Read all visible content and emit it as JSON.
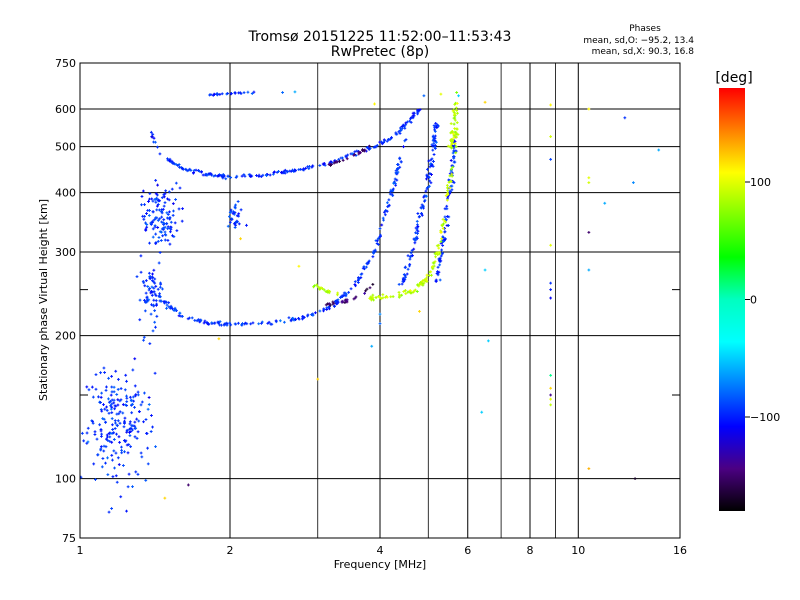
{
  "chart_data": {
    "type": "scatter",
    "title": "Tromsø 20151225 11:52:00–11:53:43",
    "subtitle": "RwPretec (8p)",
    "xlabel": "Frequency [MHz]",
    "ylabel": "Stationary phase Virtual Height [km]",
    "x_scale": "log2",
    "y_scale": "log",
    "xlim": [
      1,
      16
    ],
    "ylim": [
      75,
      750
    ],
    "x_ticks": [
      1,
      2,
      4,
      6,
      8,
      10,
      16
    ],
    "x_tick_labels": [
      "1",
      "2",
      "4",
      "6",
      "8",
      "10",
      "16"
    ],
    "x_minor_lines": [
      3,
      5,
      7,
      9
    ],
    "y_ticks": [
      75,
      100,
      200,
      300,
      400,
      500,
      600,
      750
    ],
    "y_tick_labels": [
      "75",
      "100",
      "200",
      "300",
      "400",
      "500",
      "600",
      "750"
    ],
    "y_minor_lines": [
      150,
      250
    ],
    "grid": true,
    "legend": {
      "title": "Phases",
      "lines": [
        "mean, sd,O: −95.2, 13.4",
        "mean, sd,X:  90.3, 16.8"
      ]
    },
    "colorbar": {
      "label": "[deg]",
      "range": [
        -180,
        180
      ],
      "ticks": [
        100,
        0,
        -100
      ],
      "tick_labels": [
        "100",
        "0",
        "−100"
      ],
      "colors": [
        "#ff0000",
        "#ff8000",
        "#ffff00",
        "#80ff00",
        "#00ff00",
        "#00ffc0",
        "#00ffff",
        "#0080ff",
        "#0000ff",
        "#4b0082",
        "#000000"
      ]
    },
    "series": [
      {
        "phase_deg": -95,
        "segments": [
          {
            "kind": "curve",
            "x": [
              1.38,
              1.45,
              1.6,
              1.8,
              2.0,
              2.3,
              2.7,
              3.1,
              3.5,
              3.9,
              4.2,
              4.5,
              4.8
            ],
            "y": [
              540,
              480,
              450,
              436,
              432,
              435,
              445,
              460,
              480,
              500,
              520,
              555,
              600
            ],
            "n": 220,
            "jitter": 0.008
          },
          {
            "kind": "curve",
            "x": [
              1.38,
              1.45,
              1.6,
              1.8,
              2.0,
              2.4,
              2.8,
              3.2,
              3.6,
              3.9,
              4.1,
              4.3,
              4.5
            ],
            "y": [
              270,
              240,
              220,
              213,
              212,
              213,
              218,
              230,
              260,
              300,
              360,
              430,
              520
            ],
            "n": 240,
            "jitter": 0.008
          },
          {
            "kind": "curve",
            "x": [
              4.4,
              4.6,
              4.8,
              5.0,
              5.1,
              5.2
            ],
            "y": [
              250,
              290,
              350,
              420,
              480,
              560
            ],
            "n": 120,
            "jitter": 0.01
          },
          {
            "kind": "curve",
            "x": [
              5.2,
              5.4,
              5.55,
              5.65
            ],
            "y": [
              260,
              330,
              420,
              520
            ],
            "n": 90,
            "jitter": 0.01
          },
          {
            "kind": "blob",
            "cx": 1.45,
            "cy": 360,
            "rx": 0.1,
            "ry": 45,
            "n": 130
          },
          {
            "kind": "blob",
            "cx": 2.05,
            "cy": 355,
            "rx": 0.07,
            "ry": 20,
            "n": 30
          },
          {
            "kind": "blob",
            "cx": 1.2,
            "cy": 130,
            "rx": 0.15,
            "ry": 30,
            "n": 230
          },
          {
            "kind": "blob",
            "cx": 1.4,
            "cy": 240,
            "rx": 0.07,
            "ry": 35,
            "n": 60
          },
          {
            "kind": "curve",
            "x": [
              1.82,
              1.95,
              2.1,
              2.25
            ],
            "y": [
              642,
              645,
              648,
              650
            ],
            "n": 25,
            "jitter": 0.004
          }
        ]
      },
      {
        "phase_deg": 90,
        "segments": [
          {
            "kind": "curve",
            "x": [
              3.8,
              4.3,
              4.7,
              5.0,
              5.25,
              5.45,
              5.6,
              5.7
            ],
            "y": [
              240,
              242,
              250,
              265,
              300,
              380,
              470,
              560
            ],
            "n": 130,
            "jitter": 0.01
          },
          {
            "kind": "curve",
            "x": [
              5.55,
              5.62,
              5.7
            ],
            "y": [
              500,
              560,
              620
            ],
            "n": 40,
            "jitter": 0.01
          },
          {
            "kind": "curve",
            "x": [
              2.95,
              3.1,
              3.3
            ],
            "y": [
              255,
              250,
              243
            ],
            "n": 20,
            "jitter": 0.01
          }
        ]
      },
      {
        "phase_deg": -150,
        "segments": [
          {
            "kind": "curve",
            "x": [
              3.1,
              3.4,
              3.7,
              3.9
            ],
            "y": [
              455,
              470,
              490,
              505
            ],
            "n": 25,
            "jitter": 0.006
          },
          {
            "kind": "curve",
            "x": [
              3.1,
              3.4,
              3.7,
              3.9
            ],
            "y": [
              232,
              236,
              245,
              260
            ],
            "n": 25,
            "jitter": 0.006
          }
        ]
      }
    ],
    "scattered_points": [
      {
        "x": 6.5,
        "y": 620,
        "phase": 120
      },
      {
        "x": 8.8,
        "y": 612,
        "phase": 110
      },
      {
        "x": 8.8,
        "y": 525,
        "phase": 95
      },
      {
        "x": 8.8,
        "y": 470,
        "phase": -90
      },
      {
        "x": 8.8,
        "y": 310,
        "phase": 100
      },
      {
        "x": 8.8,
        "y": 258,
        "phase": -95
      },
      {
        "x": 8.8,
        "y": 250,
        "phase": -100
      },
      {
        "x": 8.8,
        "y": 240,
        "phase": -110
      },
      {
        "x": 8.8,
        "y": 165,
        "phase": 10
      },
      {
        "x": 8.8,
        "y": 155,
        "phase": 120
      },
      {
        "x": 8.8,
        "y": 150,
        "phase": -140
      },
      {
        "x": 8.8,
        "y": 147,
        "phase": 100
      },
      {
        "x": 8.8,
        "y": 143,
        "phase": 90
      },
      {
        "x": 10.5,
        "y": 600,
        "phase": 110
      },
      {
        "x": 10.5,
        "y": 430,
        "phase": 100
      },
      {
        "x": 10.5,
        "y": 420,
        "phase": 95
      },
      {
        "x": 10.5,
        "y": 330,
        "phase": -150
      },
      {
        "x": 10.5,
        "y": 275,
        "phase": -60
      },
      {
        "x": 10.5,
        "y": 105,
        "phase": 130
      },
      {
        "x": 11.3,
        "y": 380,
        "phase": -60
      },
      {
        "x": 12.4,
        "y": 575,
        "phase": -95
      },
      {
        "x": 12.9,
        "y": 420,
        "phase": -70
      },
      {
        "x": 13.0,
        "y": 100,
        "phase": -170
      },
      {
        "x": 14.5,
        "y": 492,
        "phase": -60
      },
      {
        "x": 6.5,
        "y": 275,
        "phase": -50
      },
      {
        "x": 6.6,
        "y": 195,
        "phase": -50
      },
      {
        "x": 6.4,
        "y": 138,
        "phase": -50
      },
      {
        "x": 4.0,
        "y": 222,
        "phase": -70
      },
      {
        "x": 4.0,
        "y": 212,
        "phase": -80
      },
      {
        "x": 3.85,
        "y": 190,
        "phase": -60
      },
      {
        "x": 3.0,
        "y": 162,
        "phase": 120
      },
      {
        "x": 2.75,
        "y": 280,
        "phase": 110
      },
      {
        "x": 2.1,
        "y": 320,
        "phase": 120
      },
      {
        "x": 2.55,
        "y": 650,
        "phase": -80
      },
      {
        "x": 2.7,
        "y": 652,
        "phase": -60
      },
      {
        "x": 1.48,
        "y": 91,
        "phase": 120
      },
      {
        "x": 1.65,
        "y": 97,
        "phase": -150
      },
      {
        "x": 4.8,
        "y": 225,
        "phase": 120
      },
      {
        "x": 3.9,
        "y": 615,
        "phase": 110
      },
      {
        "x": 5.7,
        "y": 650,
        "phase": 70
      },
      {
        "x": 5.75,
        "y": 640,
        "phase": -50
      },
      {
        "x": 5.3,
        "y": 645,
        "phase": 100
      },
      {
        "x": 4.9,
        "y": 640,
        "phase": -80
      },
      {
        "x": 1.9,
        "y": 197,
        "phase": 120
      }
    ]
  }
}
